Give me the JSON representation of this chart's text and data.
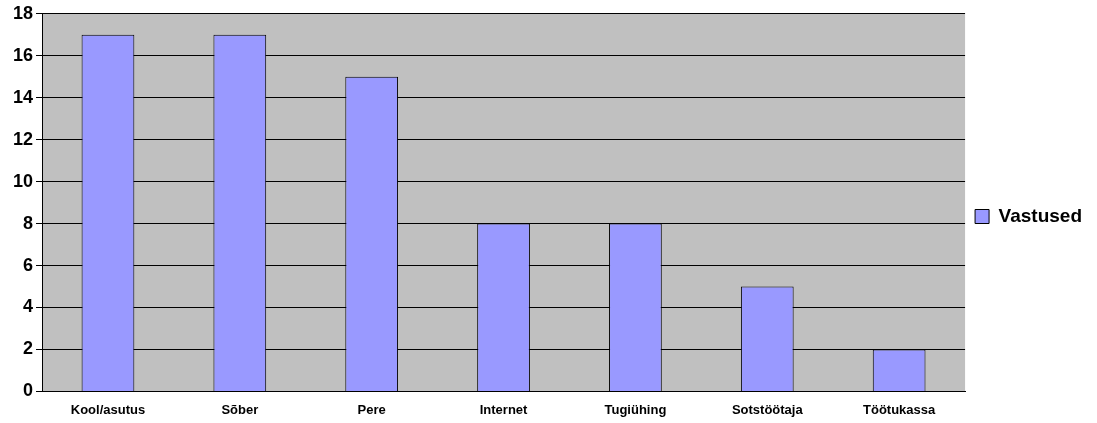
{
  "chart_data": {
    "type": "bar",
    "categories": [
      "Kool/asutus",
      "Sõber",
      "Pere",
      "Internet",
      "Tugiühing",
      "Sotstöötaja",
      "Töötukassa"
    ],
    "series": [
      {
        "name": "Vastused",
        "color": "#9999ff",
        "values": [
          17,
          17,
          15,
          8,
          8,
          5,
          2
        ]
      }
    ],
    "ylim": [
      0,
      18
    ],
    "yticks": [
      0,
      2,
      4,
      6,
      8,
      10,
      12,
      14,
      16,
      18
    ],
    "grid": "y",
    "legend": "right"
  }
}
